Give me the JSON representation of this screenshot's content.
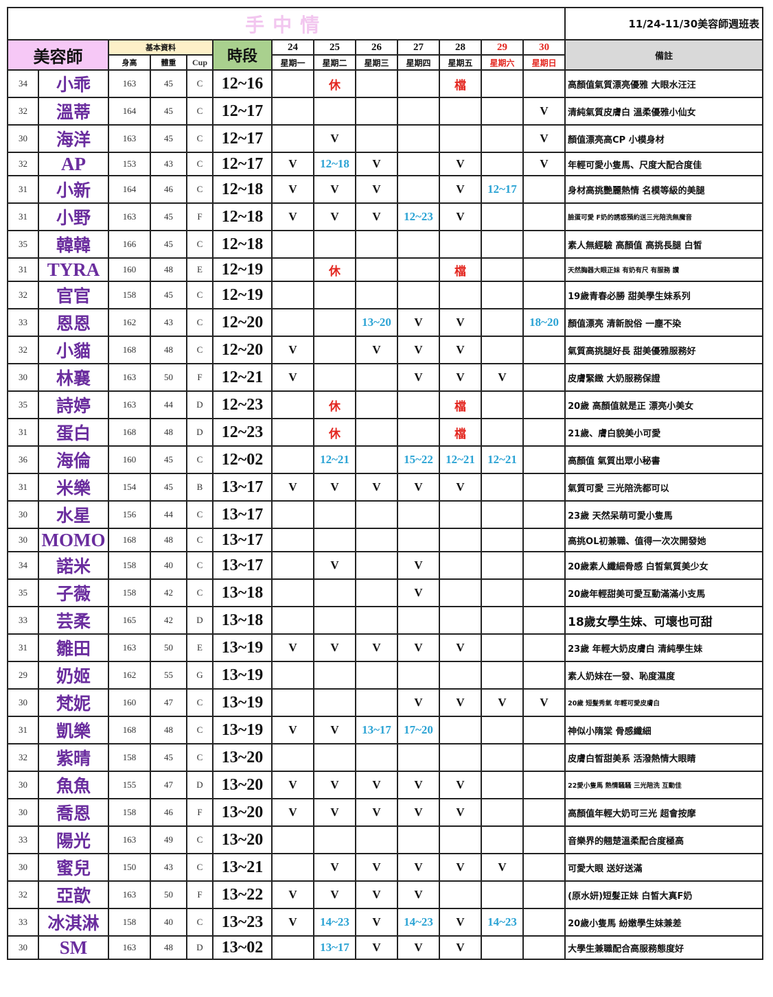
{
  "header": {
    "title": "手中情",
    "week_title": "11/24-11/30美容師週班表",
    "name_header": "美容師",
    "basic_header": "基本資料",
    "height_header": "身高",
    "weight_header": "體重",
    "cup_header": "Cup",
    "time_header": "時段",
    "notes_header": "備註",
    "dates": [
      "24",
      "25",
      "26",
      "27",
      "28",
      "29",
      "30"
    ],
    "weekdays": [
      "星期一",
      "星期二",
      "星期三",
      "星期四",
      "星期五",
      "星期六",
      "星期日"
    ],
    "weekend_color": "#e3261f"
  },
  "colors": {
    "name": "#6a2d9e",
    "shift": "#2ba3d4",
    "off": "#e3261f",
    "name_header_bg": "#f6c8f6",
    "basic_header_bg": "#fdf0c8",
    "time_header_bg": "#a9d08e",
    "notes_header_bg": "#d9d9d9"
  },
  "rows": [
    {
      "age": "34",
      "name": "小乖",
      "height": "163",
      "weight": "45",
      "cup": "C",
      "time": "12~16",
      "days": [
        "",
        "休",
        "",
        "",
        "檔",
        "",
        ""
      ],
      "note": "高顏值氣質漂亮優雅 大眼水汪汪"
    },
    {
      "age": "32",
      "name": "溫蒂",
      "height": "164",
      "weight": "45",
      "cup": "C",
      "time": "12~17",
      "days": [
        "",
        "",
        "",
        "",
        "",
        "",
        "V"
      ],
      "note": "清純氣質皮膚白 溫柔優雅小仙女"
    },
    {
      "age": "30",
      "name": "海洋",
      "height": "163",
      "weight": "45",
      "cup": "C",
      "time": "12~17",
      "days": [
        "",
        "V",
        "",
        "",
        "",
        "",
        "V"
      ],
      "note": "顏值漂亮高CP 小模身材"
    },
    {
      "age": "32",
      "name": "AP",
      "height": "153",
      "weight": "43",
      "cup": "C",
      "time": "12~17",
      "days": [
        "V",
        "12~18",
        "V",
        "",
        "V",
        "",
        "V"
      ],
      "note": "年輕可愛小隻馬、尺度大配合度佳"
    },
    {
      "age": "31",
      "name": "小新",
      "height": "164",
      "weight": "46",
      "cup": "C",
      "time": "12~18",
      "days": [
        "V",
        "V",
        "V",
        "",
        "V",
        "12~17",
        ""
      ],
      "note": "身材高挑艷麗熱情 名模等級的美腿"
    },
    {
      "age": "31",
      "name": "小野",
      "height": "163",
      "weight": "45",
      "cup": "F",
      "time": "12~18",
      "days": [
        "V",
        "V",
        "V",
        "12~23",
        "V",
        "",
        ""
      ],
      "note": "臉蛋可愛 F奶的誘惑預約送三光陪洗無魔音"
    },
    {
      "age": "35",
      "name": "韓韓",
      "height": "166",
      "weight": "45",
      "cup": "C",
      "time": "12~18",
      "days": [
        "",
        "",
        "",
        "",
        "",
        "",
        ""
      ],
      "note": "素人無經驗 高顏值 高挑長腿 白皙"
    },
    {
      "age": "31",
      "name": "TYRA",
      "height": "160",
      "weight": "48",
      "cup": "E",
      "time": "12~19",
      "days": [
        "",
        "休",
        "",
        "",
        "檔",
        "",
        ""
      ],
      "note": "天然胸器大眼正妹 有奶有尺 有服務 讚"
    },
    {
      "age": "32",
      "name": "官官",
      "height": "158",
      "weight": "45",
      "cup": "C",
      "time": "12~19",
      "days": [
        "",
        "",
        "",
        "",
        "",
        "",
        ""
      ],
      "note": "19歲青春必勝  甜美學生妹系列"
    },
    {
      "age": "33",
      "name": "恩恩",
      "height": "162",
      "weight": "43",
      "cup": "C",
      "time": "12~20",
      "days": [
        "",
        "",
        "13~20",
        "V",
        "V",
        "",
        "18~20"
      ],
      "note": "顏值漂亮  清新脫俗 一塵不染"
    },
    {
      "age": "32",
      "name": "小貓",
      "height": "168",
      "weight": "48",
      "cup": "C",
      "time": "12~20",
      "days": [
        "V",
        "",
        "V",
        "V",
        "V",
        "",
        ""
      ],
      "note": "氣質高挑腿好長 甜美優雅服務好"
    },
    {
      "age": "30",
      "name": "林襄",
      "height": "163",
      "weight": "50",
      "cup": "F",
      "time": "12~21",
      "days": [
        "V",
        "",
        "",
        "V",
        "V",
        "V",
        ""
      ],
      "note": "皮膚緊緻 大奶服務保證"
    },
    {
      "age": "35",
      "name": "詩婷",
      "height": "163",
      "weight": "44",
      "cup": "D",
      "time": "12~23",
      "days": [
        "",
        "休",
        "",
        "",
        "檔",
        "",
        ""
      ],
      "note": "20歲 高顏值就是正 漂亮小美女"
    },
    {
      "age": "31",
      "name": "蛋白",
      "height": "168",
      "weight": "48",
      "cup": "D",
      "time": "12~23",
      "days": [
        "",
        "休",
        "",
        "",
        "檔",
        "",
        ""
      ],
      "note": "21歲、膚白貌美小可愛"
    },
    {
      "age": "36",
      "name": "海倫",
      "height": "160",
      "weight": "45",
      "cup": "C",
      "time": "12~02",
      "days": [
        "",
        "12~21",
        "",
        "15~22",
        "12~21",
        "12~21",
        ""
      ],
      "note": "高顏值 氣質出眾小秘書"
    },
    {
      "age": "31",
      "name": "米樂",
      "height": "154",
      "weight": "45",
      "cup": "B",
      "time": "13~17",
      "days": [
        "V",
        "V",
        "V",
        "V",
        "V",
        "",
        ""
      ],
      "note": "氣質可愛 三光陪洗都可以"
    },
    {
      "age": "30",
      "name": "水星",
      "height": "156",
      "weight": "44",
      "cup": "C",
      "time": "13~17",
      "days": [
        "",
        "",
        "",
        "",
        "",
        "",
        ""
      ],
      "note": "23歲 天然呆萌可愛小隻馬"
    },
    {
      "age": "30",
      "name": "MOMO",
      "height": "168",
      "weight": "48",
      "cup": "C",
      "time": "13~17",
      "days": [
        "",
        "",
        "",
        "",
        "",
        "",
        ""
      ],
      "note": "高挑OL初兼職、值得一次次開發她"
    },
    {
      "age": "34",
      "name": "諾米",
      "height": "158",
      "weight": "40",
      "cup": "C",
      "time": "13~17",
      "days": [
        "",
        "V",
        "",
        "V",
        "",
        "",
        ""
      ],
      "note": "20歲素人纖細骨感 白皙氣質美少女"
    },
    {
      "age": "35",
      "name": "子薇",
      "height": "158",
      "weight": "42",
      "cup": "C",
      "time": "13~18",
      "days": [
        "",
        "",
        "",
        "V",
        "",
        "",
        ""
      ],
      "note": "20歲年輕甜美可愛互動滿滿小支馬"
    },
    {
      "age": "33",
      "name": "芸柔",
      "height": "165",
      "weight": "42",
      "cup": "D",
      "time": "13~18",
      "days": [
        "",
        "",
        "",
        "",
        "",
        "",
        ""
      ],
      "note": "18歲女學生妹、可壞也可甜"
    },
    {
      "age": "31",
      "name": "雛田",
      "height": "163",
      "weight": "50",
      "cup": "E",
      "time": "13~19",
      "days": [
        "V",
        "V",
        "V",
        "V",
        "V",
        "",
        ""
      ],
      "note": "23歲 年輕大奶皮膚白 清純學生妹"
    },
    {
      "age": "29",
      "name": "奶姬",
      "height": "162",
      "weight": "55",
      "cup": "G",
      "time": "13~19",
      "days": [
        "",
        "",
        "",
        "",
        "",
        "",
        ""
      ],
      "note": "素人奶妹在一發、恥度濕度"
    },
    {
      "age": "30",
      "name": "梵妮",
      "height": "160",
      "weight": "47",
      "cup": "C",
      "time": "13~19",
      "days": [
        "",
        "",
        "",
        "V",
        "V",
        "V",
        "V"
      ],
      "note": "20歲 短髮秀氣 年輕可愛皮膚白"
    },
    {
      "age": "31",
      "name": "凱樂",
      "height": "168",
      "weight": "48",
      "cup": "C",
      "time": "13~19",
      "days": [
        "V",
        "V",
        "13~17",
        "17~20",
        "",
        "",
        ""
      ],
      "note": "神似小隋棠 骨感纖細"
    },
    {
      "age": "32",
      "name": "紫晴",
      "height": "158",
      "weight": "45",
      "cup": "C",
      "time": "13~20",
      "days": [
        "",
        "",
        "",
        "",
        "",
        "",
        ""
      ],
      "note": "皮膚白皙甜美系 活潑熱情大眼睛"
    },
    {
      "age": "30",
      "name": "魚魚",
      "height": "155",
      "weight": "47",
      "cup": "D",
      "time": "13~20",
      "days": [
        "V",
        "V",
        "V",
        "V",
        "V",
        "",
        ""
      ],
      "note": "22愛小隻馬 熱情騷騷 三光陪洗 互動佳"
    },
    {
      "age": "30",
      "name": "喬恩",
      "height": "158",
      "weight": "46",
      "cup": "F",
      "time": "13~20",
      "days": [
        "V",
        "V",
        "V",
        "V",
        "V",
        "",
        ""
      ],
      "note": "高顏值年輕大奶可三光 超會按摩"
    },
    {
      "age": "33",
      "name": "陽光",
      "height": "163",
      "weight": "49",
      "cup": "C",
      "time": "13~20",
      "days": [
        "",
        "",
        "",
        "",
        "",
        "",
        ""
      ],
      "note": "音樂界的翹楚溫柔配合度極高"
    },
    {
      "age": "30",
      "name": "蜜兒",
      "height": "150",
      "weight": "43",
      "cup": "C",
      "time": "13~21",
      "days": [
        "",
        "V",
        "V",
        "V",
        "V",
        "V",
        ""
      ],
      "note": "可愛大眼 送好送滿"
    },
    {
      "age": "32",
      "name": "亞歆",
      "height": "163",
      "weight": "50",
      "cup": "F",
      "time": "13~22",
      "days": [
        "V",
        "V",
        "V",
        "V",
        "",
        "",
        ""
      ],
      "note": "(原水妍)短髮正妹 白皙大真F奶"
    },
    {
      "age": "33",
      "name": "冰淇淋",
      "height": "158",
      "weight": "40",
      "cup": "C",
      "time": "13~23",
      "days": [
        "V",
        "14~23",
        "V",
        "14~23",
        "V",
        "14~23",
        ""
      ],
      "note": "20歲小隻馬 紛嫩學生妹兼差"
    },
    {
      "age": "30",
      "name": "SM",
      "height": "163",
      "weight": "48",
      "cup": "D",
      "time": "13~02",
      "days": [
        "",
        "13~17",
        "V",
        "V",
        "V",
        "",
        ""
      ],
      "note": "大學生兼職配合高服務態度好"
    }
  ]
}
